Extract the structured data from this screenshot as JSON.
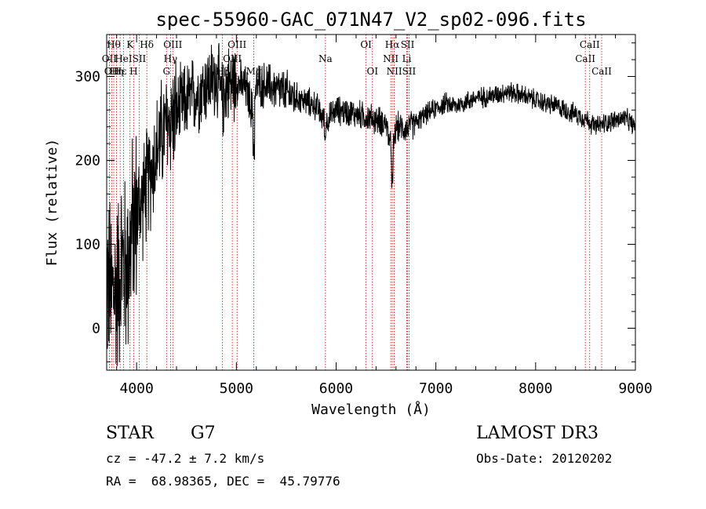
{
  "chart_data": {
    "type": "line",
    "title": "spec-55960-GAC_071N47_V2_sp02-096.fits",
    "xlabel": "Wavelength (Å)",
    "ylabel": "Flux (relative)",
    "xlim": [
      3700,
      9000
    ],
    "ylim": [
      -50,
      350
    ],
    "xticks": [
      4000,
      5000,
      6000,
      7000,
      8000,
      9000
    ],
    "xtick_labels": [
      "4000",
      "5000",
      "6000",
      "7000",
      "8000",
      "9000"
    ],
    "yticks": [
      0,
      100,
      200,
      300
    ],
    "ytick_labels": [
      "0",
      "100",
      "200",
      "300"
    ],
    "grid": false,
    "series": [
      {
        "name": "spectrum",
        "x": [
          3700,
          3750,
          3800,
          3850,
          3900,
          3950,
          4000,
          4050,
          4100,
          4150,
          4200,
          4250,
          4300,
          4350,
          4400,
          4450,
          4500,
          4600,
          4700,
          4800,
          4860,
          4900,
          5000,
          5100,
          5175,
          5200,
          5300,
          5400,
          5500,
          5600,
          5700,
          5800,
          5890,
          6000,
          6100,
          6200,
          6300,
          6400,
          6500,
          6563,
          6600,
          6700,
          6800,
          6900,
          7000,
          7100,
          7200,
          7300,
          7400,
          7500,
          7600,
          7700,
          7800,
          7900,
          8000,
          8100,
          8200,
          8300,
          8400,
          8500,
          8600,
          8700,
          8800,
          8900,
          9000
        ],
        "y": [
          60,
          40,
          50,
          80,
          70,
          110,
          140,
          150,
          170,
          190,
          210,
          230,
          240,
          250,
          255,
          265,
          270,
          280,
          290,
          300,
          270,
          290,
          295,
          285,
          250,
          290,
          290,
          285,
          280,
          275,
          270,
          265,
          245,
          260,
          258,
          255,
          252,
          248,
          245,
          205,
          240,
          238,
          245,
          255,
          262,
          268,
          265,
          270,
          274,
          276,
          278,
          282,
          280,
          276,
          272,
          268,
          265,
          260,
          255,
          250,
          240,
          245,
          248,
          250,
          240
        ]
      }
    ],
    "line_marks": [
      {
        "x": 3727,
        "label": "OII",
        "row": 2
      },
      {
        "x": 3750,
        "label": "OII",
        "row": 3
      },
      {
        "x": 3771,
        "label": "Hθ",
        "row": 1
      },
      {
        "x": 3798,
        "label": "Hη",
        "row": 3
      },
      {
        "x": 3835,
        "label": "Hε",
        "row": 3
      },
      {
        "x": 3869,
        "label": "HeI",
        "row": 2
      },
      {
        "x": 3934,
        "label": "K",
        "row": 1
      },
      {
        "x": 3970,
        "label": "H",
        "row": 3
      },
      {
        "x": 4026,
        "label": "SII",
        "row": 2
      },
      {
        "x": 4102,
        "label": "Hδ",
        "row": 1
      },
      {
        "x": 4300,
        "label": "G",
        "row": 3
      },
      {
        "x": 4340,
        "label": "Hγ",
        "row": 2
      },
      {
        "x": 4363,
        "label": "OIII",
        "row": 1
      },
      {
        "x": 4861,
        "label": "Hβ",
        "row": 3
      },
      {
        "x": 4959,
        "label": "OIII",
        "row": 2
      },
      {
        "x": 5007,
        "label": "OIII",
        "row": 1
      },
      {
        "x": 5175,
        "label": "Mg",
        "row": 3
      },
      {
        "x": 5893,
        "label": "Na",
        "row": 2
      },
      {
        "x": 6300,
        "label": "OI",
        "row": 1
      },
      {
        "x": 6364,
        "label": "OI",
        "row": 3
      },
      {
        "x": 6548,
        "label": "NII",
        "row": 2
      },
      {
        "x": 6563,
        "label": "Hα",
        "row": 1
      },
      {
        "x": 6583,
        "label": "NII",
        "row": 3
      },
      {
        "x": 6708,
        "label": "Li",
        "row": 2
      },
      {
        "x": 6716,
        "label": "SII",
        "row": 1
      },
      {
        "x": 6731,
        "label": "SII",
        "row": 3
      },
      {
        "x": 8498,
        "label": "CaII",
        "row": 2
      },
      {
        "x": 8542,
        "label": "CaII",
        "row": 1
      },
      {
        "x": 8662,
        "label": "CaII",
        "row": 3
      }
    ]
  },
  "info": {
    "object_class": "STAR",
    "subclass": "G7",
    "survey": "LAMOST DR3",
    "redshift": "cz = -47.2 ± 7.2 km/s",
    "obs_date": "Obs-Date: 20120202",
    "coords": "RA =  68.98365, DEC =  45.79776"
  },
  "colors": {
    "spectrum": "#000000",
    "line_marks": "#cc0000",
    "axes": "#000000"
  }
}
